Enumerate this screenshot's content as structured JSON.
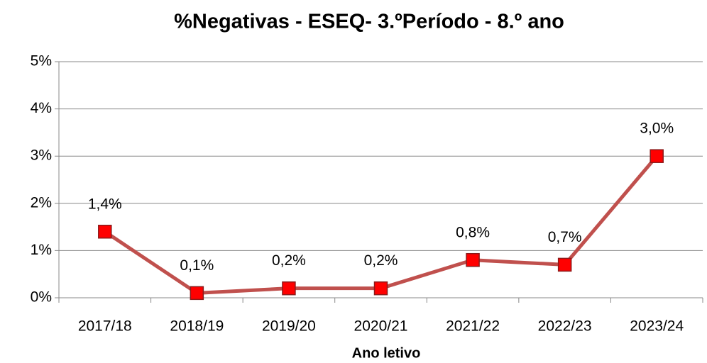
{
  "chart_data": {
    "type": "line",
    "title": "%Negativas - ESEQ- 3.ºPeríodo - 8.º ano",
    "x_label": "Ano letivo",
    "categories": [
      "2017/18",
      "2018/19",
      "2019/20",
      "2020/21",
      "2021/22",
      "2022/23",
      "2023/24"
    ],
    "series": [
      {
        "name": "%Negativas",
        "color": "#c0504d",
        "marker_color": "#ff0000",
        "values": [
          1.4,
          0.1,
          0.2,
          0.2,
          0.8,
          0.7,
          3.0
        ],
        "value_labels": [
          "1,4%",
          "0,1%",
          "0,2%",
          "0,2%",
          "0,8%",
          "0,7%",
          "3,0%"
        ]
      }
    ],
    "ylim": [
      0,
      5
    ],
    "yticks": [
      {
        "value": 0,
        "label": "0%"
      },
      {
        "value": 1,
        "label": "1%"
      },
      {
        "value": 2,
        "label": "2%"
      },
      {
        "value": 3,
        "label": "3%"
      },
      {
        "value": 4,
        "label": "4%"
      },
      {
        "value": 5,
        "label": "5%"
      }
    ],
    "grid": true
  }
}
